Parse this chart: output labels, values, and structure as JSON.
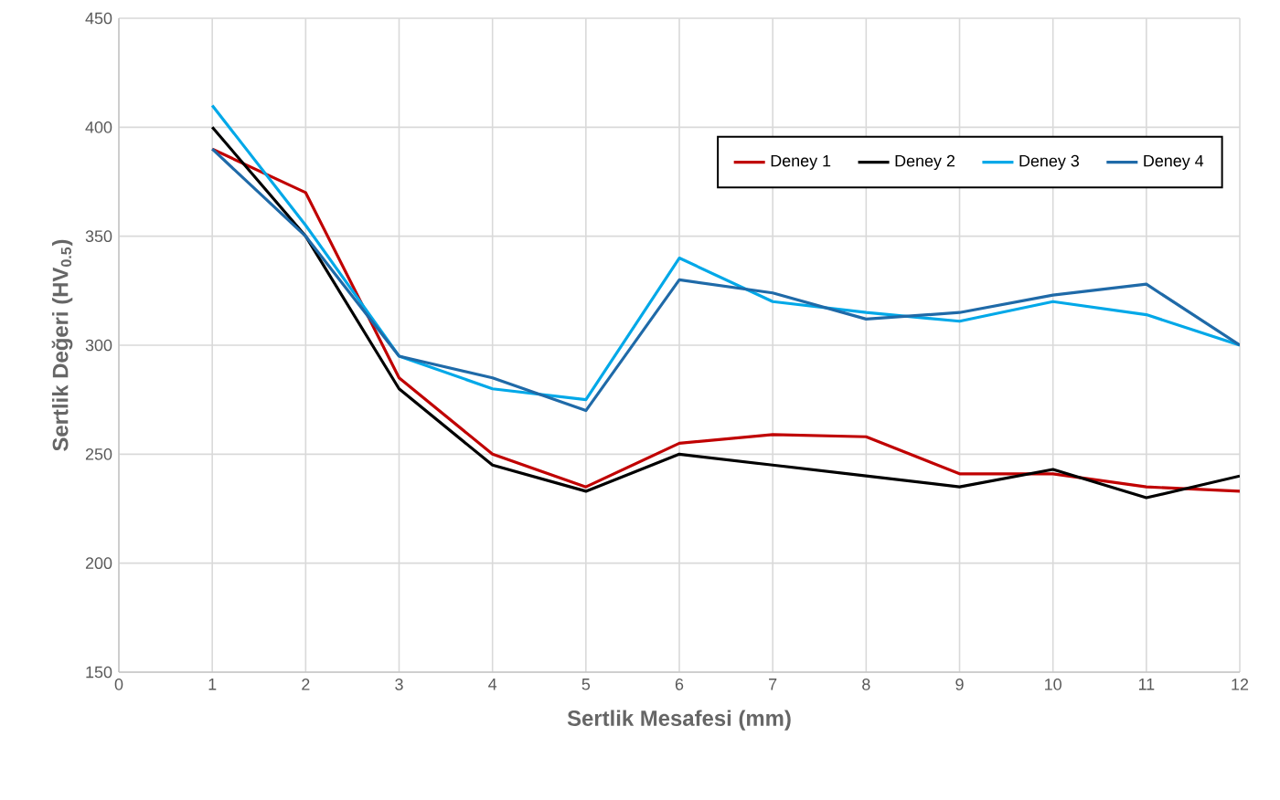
{
  "chart_data": {
    "type": "line",
    "xlabel": "Sertlik Mesafesi (mm)",
    "ylabel": "Sertlik Değeri (HV$_{0.5}$)",
    "x": [
      1,
      2,
      3,
      4,
      5,
      6,
      7,
      8,
      9,
      10,
      11,
      12
    ],
    "series": [
      {
        "name": "Deney 1",
        "color": "#c00000",
        "values": [
          390,
          370,
          285,
          250,
          235,
          255,
          259,
          258,
          241,
          241,
          235,
          233
        ]
      },
      {
        "name": "Deney 2",
        "color": "#000000",
        "values": [
          400,
          350,
          280,
          245,
          233,
          250,
          245,
          240,
          235,
          243,
          230,
          240
        ]
      },
      {
        "name": "Deney 3",
        "color": "#00a8e8",
        "values": [
          410,
          355,
          295,
          280,
          275,
          340,
          320,
          315,
          311,
          320,
          314,
          300
        ]
      },
      {
        "name": "Deney 4",
        "color": "#1f6aa8",
        "values": [
          390,
          350,
          295,
          285,
          270,
          330,
          324,
          312,
          315,
          323,
          328,
          300
        ]
      }
    ],
    "xlim": [
      0,
      12
    ],
    "xticks": [
      0,
      1,
      2,
      3,
      4,
      5,
      6,
      7,
      8,
      9,
      10,
      11,
      12
    ],
    "ylim": [
      150,
      450
    ],
    "yticks": [
      150,
      200,
      250,
      300,
      350,
      400,
      450
    ],
    "grid": true,
    "legend": "top right",
    "marker": "none",
    "line_style": "solid"
  }
}
